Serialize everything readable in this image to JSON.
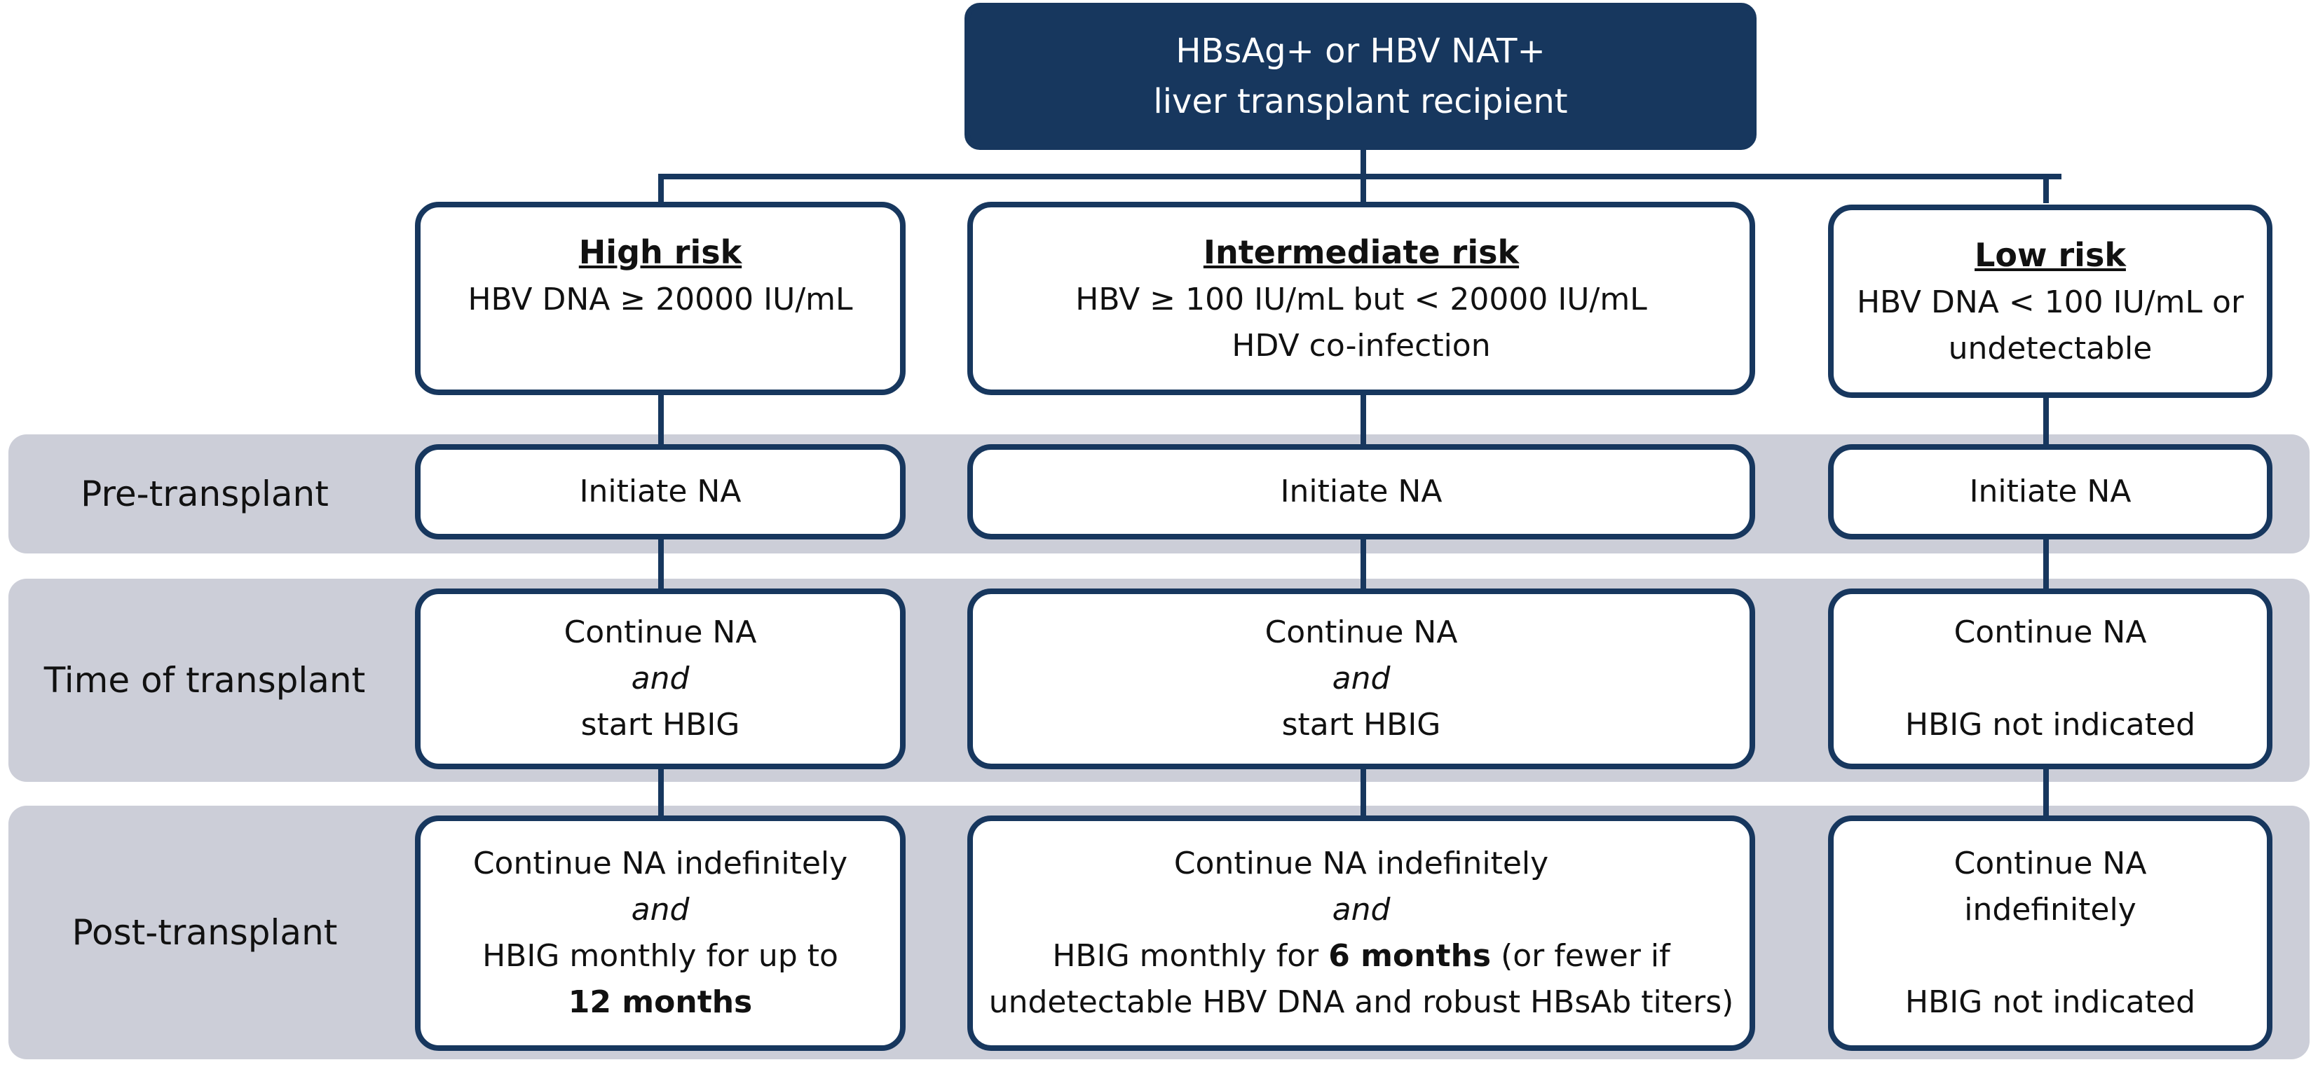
{
  "root": {
    "line1": "HBsAg+ or HBV NAT+",
    "line2": "liver transplant recipient"
  },
  "risks": {
    "high": {
      "title": "High risk",
      "line1": "HBV DNA ≥ 20000 IU/mL"
    },
    "intermediate": {
      "title": "Intermediate risk",
      "line1": "HBV ≥ 100 IU/mL but < 20000 IU/mL",
      "line2": "HDV co-infection"
    },
    "low": {
      "title": "Low risk",
      "line1": "HBV DNA < 100 IU/mL or",
      "line2": "undetectable"
    }
  },
  "stages": {
    "pre": "Pre-transplant",
    "time": "Time of transplant",
    "post": "Post-transplant"
  },
  "pre": {
    "high": "Initiate NA",
    "intermediate": "Initiate NA",
    "low": "Initiate NA"
  },
  "time": {
    "high": {
      "line1": "Continue NA",
      "line2": "and",
      "line3": "start HBIG"
    },
    "intermediate": {
      "line1": "Continue NA",
      "line2": "and",
      "line3": "start HBIG"
    },
    "low": {
      "line1": "Continue NA",
      "line3": "HBIG not indicated"
    }
  },
  "post": {
    "high": {
      "line1": "Continue NA indefinitely",
      "line2": "and",
      "line3": "HBIG monthly for up to",
      "line4": "12 months"
    },
    "intermediate": {
      "line1": "Continue NA indefinitely",
      "line2": "and",
      "line3_pre": "HBIG monthly for ",
      "line3_bold": "6 months",
      "line3_post": " (or fewer if",
      "line4": "undetectable HBV DNA and robust HBsAb titers)"
    },
    "low": {
      "line1": "Continue NA",
      "line2": "indefinitely",
      "line4": "HBIG not indicated"
    }
  },
  "colors": {
    "navy": "#17375e",
    "band": "#ccced8"
  }
}
